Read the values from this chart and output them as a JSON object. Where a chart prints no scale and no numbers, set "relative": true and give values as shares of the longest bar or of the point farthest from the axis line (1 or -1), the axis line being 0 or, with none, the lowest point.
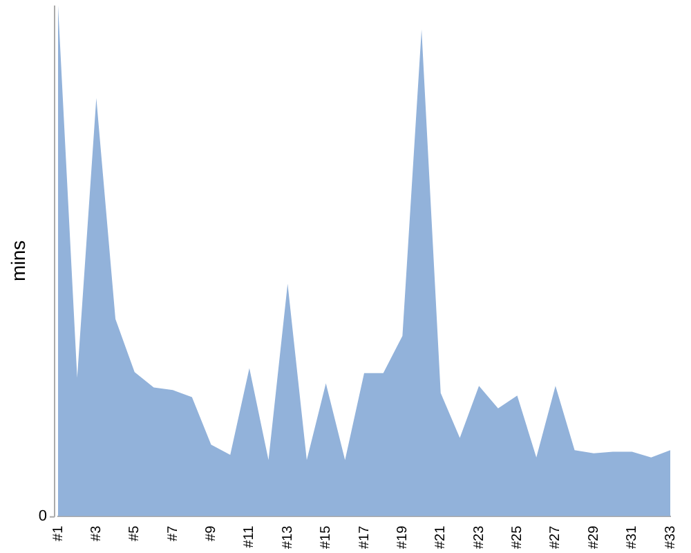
{
  "chart_data": {
    "type": "area",
    "ylabel": "mins",
    "relative": true,
    "color": "#92b2da",
    "grid": false,
    "legend": false,
    "categories": [
      "#1",
      null,
      "#3",
      null,
      "#5",
      null,
      "#7",
      null,
      "#9",
      null,
      "#11",
      null,
      "#13",
      null,
      "#15",
      null,
      "#17",
      null,
      "#19",
      null,
      "#21",
      null,
      "#23",
      null,
      "#25",
      null,
      "#27",
      null,
      "#29",
      null,
      "#31",
      null,
      "#33"
    ],
    "values": [
      1.0,
      0.271,
      0.819,
      0.386,
      0.282,
      0.252,
      0.247,
      0.233,
      0.14,
      0.12,
      0.29,
      0.11,
      0.455,
      0.11,
      0.26,
      0.11,
      0.28,
      0.28,
      0.353,
      0.953,
      0.241,
      0.153,
      0.255,
      0.211,
      0.236,
      0.115,
      0.255,
      0.129,
      0.123,
      0.126,
      0.126,
      0.115,
      0.129
    ],
    "annotations": [
      "0"
    ]
  }
}
